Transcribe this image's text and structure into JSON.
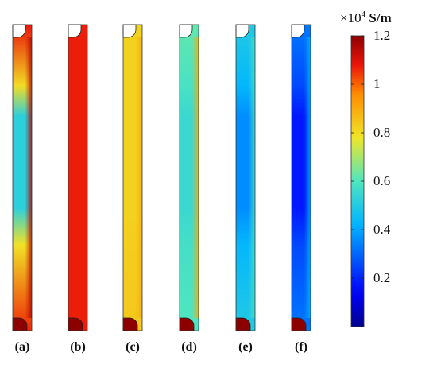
{
  "colorbar": {
    "unit_prefix": "×10",
    "unit_exponent": "4",
    "unit": "S/m",
    "min": 0,
    "max": 1.2,
    "ticks": [
      "1.2",
      "1",
      "0.8",
      "0.6",
      "0.4",
      "0.2"
    ]
  },
  "panels": [
    {
      "label": "(a)",
      "top_value": 1.08,
      "mid_value": 0.52,
      "bottom_value": 1.06,
      "edge_value": 1.15,
      "top_hot": false,
      "bottom_hot": true
    },
    {
      "label": "(b)",
      "top_value": 1.07,
      "mid_value": 1.07,
      "bottom_value": 1.07,
      "edge_value": 1.07,
      "top_hot": false,
      "bottom_hot": true
    },
    {
      "label": "(c)",
      "top_value": 0.82,
      "mid_value": 0.82,
      "bottom_value": 0.84,
      "edge_value": 0.9,
      "top_hot": false,
      "bottom_hot": true
    },
    {
      "label": "(d)",
      "top_value": 0.62,
      "mid_value": 0.55,
      "bottom_value": 0.6,
      "edge_value": 0.9,
      "top_hot": false,
      "bottom_hot": true
    },
    {
      "label": "(e)",
      "top_value": 0.5,
      "mid_value": 0.36,
      "bottom_value": 0.5,
      "edge_value": 0.58,
      "top_hot": false,
      "bottom_hot": true
    },
    {
      "label": "(f)",
      "top_value": 0.33,
      "mid_value": 0.18,
      "bottom_value": 0.33,
      "edge_value": 0.42,
      "top_hot": false,
      "bottom_hot": true
    }
  ],
  "hot_value": 1.25
}
